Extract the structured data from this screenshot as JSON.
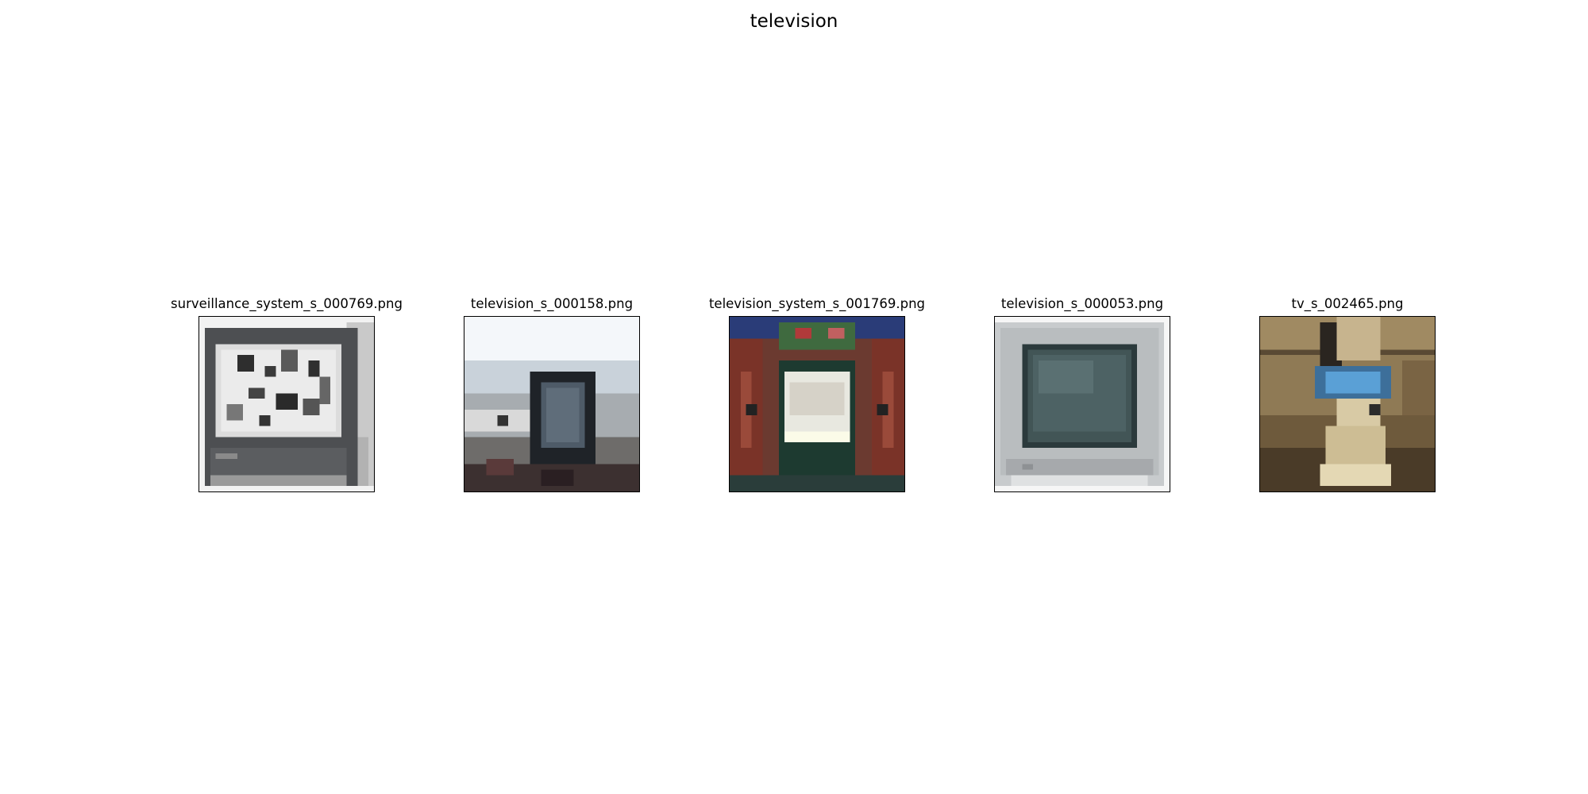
{
  "figure": {
    "title": "television"
  },
  "panels": [
    {
      "filename": "surveillance_system_s_000769.png",
      "icon": "crt-monitor-dalmatian-image"
    },
    {
      "filename": "television_s_000158.png",
      "icon": "tv-on-beach-image"
    },
    {
      "filename": "television_system_s_001769.png",
      "icon": "tv-cabinet-image"
    },
    {
      "filename": "television_s_000053.png",
      "icon": "crt-television-image"
    },
    {
      "filename": "tv_s_002465.png",
      "icon": "portable-tv-image"
    }
  ]
}
